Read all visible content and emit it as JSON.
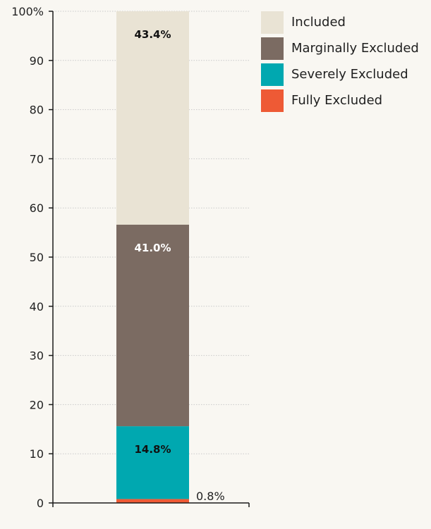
{
  "colors": {
    "background": "#f9f7f2",
    "axis": "#1a1a1a",
    "grid": "#c9c9c9",
    "label_dark": "#111111",
    "label_light": "#ffffff"
  },
  "chart_data": {
    "type": "bar",
    "stacked": true,
    "categories": [
      ""
    ],
    "ylim": [
      0,
      100
    ],
    "yticks": [
      0,
      10,
      20,
      30,
      40,
      50,
      60,
      70,
      80,
      90,
      100
    ],
    "ytick_labels": [
      "0",
      "10",
      "20",
      "30",
      "40",
      "50",
      "60",
      "70",
      "80",
      "90",
      "100%"
    ],
    "grid": true,
    "legend_position": "top-right",
    "series": [
      {
        "name": "Fully Excluded",
        "values": [
          0.8
        ],
        "label": "0.8%",
        "color": "#ee5a35"
      },
      {
        "name": "Severely Excluded",
        "values": [
          14.8
        ],
        "label": "14.8%",
        "color": "#00a8b0"
      },
      {
        "name": "Marginally Excluded",
        "values": [
          41.0
        ],
        "label": "41.0%",
        "color": "#7b6b62"
      },
      {
        "name": "Included",
        "values": [
          43.4
        ],
        "label": "43.4%",
        "color": "#e9e3d4"
      }
    ]
  },
  "legend": [
    {
      "label": "Included",
      "color": "#e9e3d4"
    },
    {
      "label": "Marginally Excluded",
      "color": "#7b6b62"
    },
    {
      "label": "Severely Excluded",
      "color": "#00a8b0"
    },
    {
      "label": "Fully Excluded",
      "color": "#ee5a35"
    }
  ]
}
